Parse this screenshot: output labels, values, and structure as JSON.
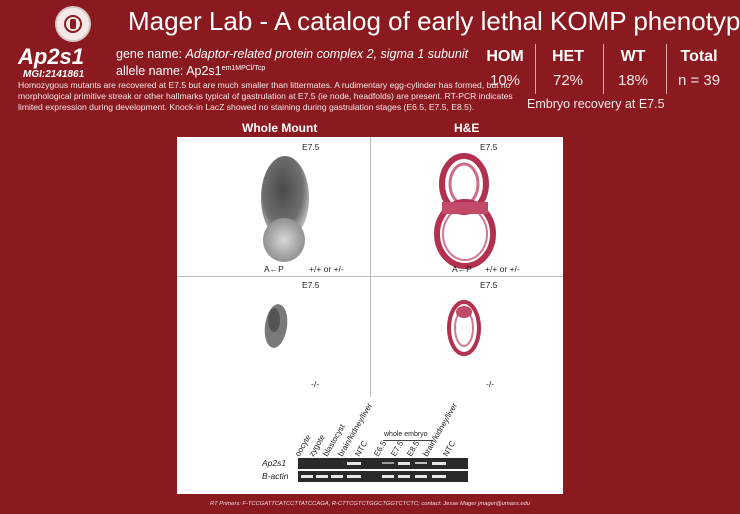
{
  "header": {
    "title": "Mager Lab - A catalog of early lethal KOMP phenotypes",
    "gene_symbol": "Ap2s1",
    "mgi": "MGI:2141861",
    "gene_name_label": "gene name: ",
    "gene_name": "Adaptor-related protein complex 2, sigma 1 subunit",
    "allele_label": "allele name: ",
    "allele_base": "Ap2s1",
    "allele_sup": "em1MPCl/Tcp"
  },
  "description": "Homozygous mutants are recovered at E7.5 but are much smaller than littermates.  A rudimentary egg-cylinder has formed, but no morphological primitive streak or other hallmarks typical of gastrulation at E7.5 (ie node, headfolds) are present.  RT-PCR indicates limited expression during development.  Knock-in LacZ showed no staining during gastrulation stages (E6.5, E7.5, E8.5).",
  "stats": [
    {
      "label": "HOM",
      "value": "10%"
    },
    {
      "label": "HET",
      "value": "72%"
    },
    {
      "label": "WT",
      "value": "18%"
    },
    {
      "label": "Total",
      "value": "n = 39"
    }
  ],
  "recovery_note": "Embryo recovery at E7.5",
  "panels": {
    "whole_mount_title": "Whole Mount",
    "he_title": "H&E",
    "stage": "E7.5",
    "axis": "A←P",
    "genotype_wt": "+/+ or +/-",
    "genotype_mut": "-/-"
  },
  "rtpcr": {
    "lanes_left": [
      "oocyte",
      "zygote",
      "blastocyst",
      "brain/kidney/liver",
      "NTC"
    ],
    "group_label": "whole embryo",
    "lanes_right": [
      "E6.5",
      "E7.5",
      "E8.5",
      "brain/kidney/liver",
      "NTC"
    ],
    "genes": [
      "Ap2s1",
      "B-actin"
    ]
  },
  "footer": "RT Primers: F-TCCGATTCATCCTTATCCAGA, R-CTTCGTCTGGCTGGTCTCTC; contact: Jesse Mager jmager@umass.edu"
}
